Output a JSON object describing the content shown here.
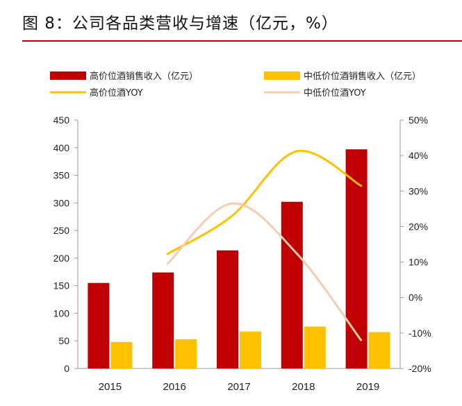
{
  "figure": {
    "title": "图 8：公司各品类营收与增速（亿元，%）"
  },
  "chart_data": {
    "type": "bar",
    "categories": [
      "2015",
      "2016",
      "2017",
      "2018",
      "2019"
    ],
    "series": [
      {
        "name": "高价位酒销售收入（亿元）",
        "kind": "bar",
        "axis": "left",
        "color": "#c00000",
        "values": [
          155,
          174,
          214,
          302,
          397
        ]
      },
      {
        "name": "中低价位酒销售收入（亿元）",
        "kind": "bar",
        "axis": "left",
        "color": "#ffc000",
        "values": [
          48,
          53,
          67,
          76,
          66
        ]
      },
      {
        "name": "高价位酒YOY",
        "kind": "line",
        "axis": "right",
        "color": "#ffc000",
        "values": [
          null,
          12.3,
          23.0,
          41.2,
          31.5
        ]
      },
      {
        "name": "中低价位酒YOY",
        "kind": "line",
        "axis": "right",
        "color": "#f8cbad",
        "values": [
          null,
          9.5,
          26.5,
          12.5,
          -12.0
        ]
      }
    ],
    "y_left": {
      "min": 0,
      "max": 450,
      "ticks": [
        "0",
        "50",
        "100",
        "150",
        "200",
        "250",
        "300",
        "350",
        "400",
        "450"
      ]
    },
    "y_right": {
      "min": -20,
      "max": 50,
      "ticks": [
        "-20%",
        "-10%",
        "0%",
        "10%",
        "20%",
        "30%",
        "40%",
        "50%"
      ]
    },
    "legend_position": "top",
    "grid": false
  }
}
